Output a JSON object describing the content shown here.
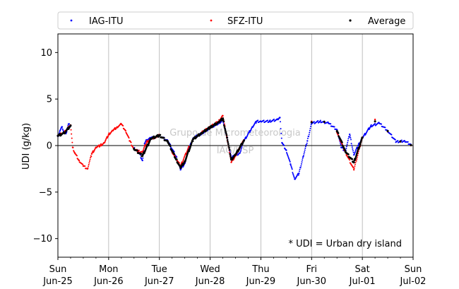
{
  "chart_data": {
    "type": "scatter",
    "ylabel": "UDI (g/kg)",
    "ylim": [
      -12,
      12
    ],
    "yticks": [
      -10,
      -5,
      0,
      5,
      10
    ],
    "xlim": [
      "2023-06-25T00:00",
      "2023-07-02T00:00"
    ],
    "xticks": [
      {
        "day": "Sun",
        "date": "Jun-25"
      },
      {
        "day": "Mon",
        "date": "Jun-26"
      },
      {
        "day": "Tue",
        "date": "Jun-27"
      },
      {
        "day": "Wed",
        "date": "Jun-28"
      },
      {
        "day": "Thu",
        "date": "Jun-29"
      },
      {
        "day": "Fri",
        "date": "Jun-30"
      },
      {
        "day": "Sat",
        "date": "Jul-01"
      },
      {
        "day": "Sun",
        "date": "Jul-02"
      }
    ],
    "grid": "vertical day lines",
    "legend_position": "top, above plot",
    "annotation": "* UDI = Urban dry island",
    "watermark": [
      "Grupo de Micrometeorologia",
      "IAG/USP"
    ],
    "series": [
      {
        "name": "IAG-ITU",
        "color": "#0000ff",
        "points": [
          [
            "2023-06-25T00:00",
            1.0
          ],
          [
            "2023-06-25T01:00",
            1.6
          ],
          [
            "2023-06-25T02:00",
            2.0
          ],
          [
            "2023-06-25T03:00",
            1.3
          ],
          [
            "2023-06-25T04:00",
            1.4
          ],
          [
            "2023-06-25T05:00",
            2.3
          ],
          [
            "2023-06-25T06:00",
            2.1
          ],
          [
            "2023-06-26T12:00",
            -0.3
          ],
          [
            "2023-06-26T14:00",
            -0.6
          ],
          [
            "2023-06-26T16:00",
            -1.6
          ],
          [
            "2023-06-26T17:00",
            0.2
          ],
          [
            "2023-06-26T18:00",
            0.6
          ],
          [
            "2023-06-26T20:00",
            0.8
          ],
          [
            "2023-06-26T22:00",
            0.9
          ],
          [
            "2023-06-27T00:00",
            1.1
          ],
          [
            "2023-06-27T04:00",
            0.5
          ],
          [
            "2023-06-27T08:00",
            -1.2
          ],
          [
            "2023-06-27T10:00",
            -2.6
          ],
          [
            "2023-06-27T12:00",
            -1.9
          ],
          [
            "2023-06-27T14:00",
            -0.3
          ],
          [
            "2023-06-27T16:00",
            0.8
          ],
          [
            "2023-06-27T20:00",
            1.3
          ],
          [
            "2023-06-28T00:00",
            1.9
          ],
          [
            "2023-06-28T04:00",
            2.4
          ],
          [
            "2023-06-28T06:00",
            2.7
          ],
          [
            "2023-06-28T08:00",
            0.9
          ],
          [
            "2023-06-28T10:00",
            -1.3
          ],
          [
            "2023-06-28T14:00",
            -0.8
          ],
          [
            "2023-06-28T16:00",
            0.5
          ],
          [
            "2023-06-28T20:00",
            2.0
          ],
          [
            "2023-06-28T22:00",
            2.6
          ],
          [
            "2023-06-29T00:00",
            2.6
          ],
          [
            "2023-06-29T04:00",
            2.6
          ],
          [
            "2023-06-29T08:00",
            2.8
          ],
          [
            "2023-06-29T09:00",
            3.0
          ],
          [
            "2023-06-29T10:00",
            0.3
          ],
          [
            "2023-06-29T12:00",
            -0.5
          ],
          [
            "2023-06-29T14:00",
            -2.0
          ],
          [
            "2023-06-29T16:00",
            -3.6
          ],
          [
            "2023-06-29T18:00",
            -3.0
          ],
          [
            "2023-06-29T20:00",
            -1.2
          ],
          [
            "2023-06-29T22:00",
            0.5
          ],
          [
            "2023-06-30T00:00",
            2.4
          ],
          [
            "2023-06-30T04:00",
            2.6
          ],
          [
            "2023-06-30T08:00",
            2.4
          ],
          [
            "2023-06-30T12:00",
            1.7
          ],
          [
            "2023-06-30T14:00",
            -0.2
          ],
          [
            "2023-06-30T16:00",
            -0.6
          ],
          [
            "2023-06-30T18:00",
            1.2
          ],
          [
            "2023-06-30T20:00",
            -1.0
          ],
          [
            "2023-06-30T22:00",
            0.0
          ],
          [
            "2023-07-01T00:00",
            0.8
          ],
          [
            "2023-07-01T04:00",
            2.1
          ],
          [
            "2023-07-01T08:00",
            2.4
          ],
          [
            "2023-07-01T12:00",
            1.6
          ],
          [
            "2023-07-01T16:00",
            0.4
          ],
          [
            "2023-07-01T20:00",
            0.5
          ],
          [
            "2023-07-01T23:00",
            0.1
          ]
        ]
      },
      {
        "name": "SFZ-ITU",
        "color": "#ff0000",
        "points": [
          [
            "2023-06-25T00:00",
            1.1
          ],
          [
            "2023-06-25T03:00",
            1.4
          ],
          [
            "2023-06-25T06:00",
            2.2
          ],
          [
            "2023-06-25T07:00",
            -0.2
          ],
          [
            "2023-06-25T08:00",
            -0.8
          ],
          [
            "2023-06-25T10:00",
            -1.6
          ],
          [
            "2023-06-25T12:00",
            -2.2
          ],
          [
            "2023-06-25T14:00",
            -2.5
          ],
          [
            "2023-06-25T16:00",
            -0.9
          ],
          [
            "2023-06-25T18:00",
            -0.2
          ],
          [
            "2023-06-25T20:00",
            0.0
          ],
          [
            "2023-06-25T22:00",
            0.3
          ],
          [
            "2023-06-26T00:00",
            1.2
          ],
          [
            "2023-06-26T02:00",
            1.6
          ],
          [
            "2023-06-26T04:00",
            2.0
          ],
          [
            "2023-06-26T06:00",
            2.3
          ],
          [
            "2023-06-26T08:00",
            1.6
          ],
          [
            "2023-06-26T10:00",
            0.5
          ],
          [
            "2023-06-26T12:00",
            -0.4
          ],
          [
            "2023-06-26T14:00",
            -0.6
          ],
          [
            "2023-06-26T16:00",
            -0.7
          ],
          [
            "2023-06-26T18:00",
            0.4
          ],
          [
            "2023-06-26T20:00",
            0.7
          ],
          [
            "2023-06-26T22:00",
            0.9
          ],
          [
            "2023-06-27T00:00",
            1.1
          ],
          [
            "2023-06-27T06:00",
            -0.7
          ],
          [
            "2023-06-27T10:00",
            -2.2
          ],
          [
            "2023-06-27T14:00",
            -0.1
          ],
          [
            "2023-06-27T20:00",
            1.4
          ],
          [
            "2023-06-28T00:00",
            2.0
          ],
          [
            "2023-06-28T04:00",
            2.6
          ],
          [
            "2023-06-28T06:00",
            3.2
          ],
          [
            "2023-06-28T08:00",
            0.8
          ],
          [
            "2023-06-28T10:00",
            -1.8
          ],
          [
            "2023-06-28T12:00",
            -1.1
          ],
          [
            "2023-06-28T16:00",
            0.6
          ],
          [
            "2023-06-30T00:00",
            2.6
          ],
          [
            "2023-06-30T06:00",
            2.5
          ],
          [
            "2023-06-30T12:00",
            1.4
          ],
          [
            "2023-06-30T16:00",
            -0.7
          ],
          [
            "2023-06-30T20:00",
            -2.6
          ],
          [
            "2023-07-01T00:00",
            0.9
          ],
          [
            "2023-07-01T06:00",
            2.8
          ],
          [
            "2023-07-01T12:00",
            1.5
          ],
          [
            "2023-07-01T18:00",
            0.4
          ],
          [
            "2023-07-01T23:00",
            0.0
          ]
        ]
      },
      {
        "name": "Average",
        "color": "#000000",
        "points": [
          [
            "2023-06-25T00:00",
            1.05
          ],
          [
            "2023-06-25T03:00",
            1.35
          ],
          [
            "2023-06-25T06:00",
            2.15
          ],
          [
            "2023-06-26T12:00",
            -0.35
          ],
          [
            "2023-06-26T16:00",
            -1.1
          ],
          [
            "2023-06-26T20:00",
            0.75
          ],
          [
            "2023-06-27T00:00",
            1.1
          ],
          [
            "2023-06-27T04:00",
            0.4
          ],
          [
            "2023-06-27T08:00",
            -1.5
          ],
          [
            "2023-06-27T10:00",
            -2.4
          ],
          [
            "2023-06-27T12:00",
            -1.7
          ],
          [
            "2023-06-27T16:00",
            0.7
          ],
          [
            "2023-06-27T20:00",
            1.35
          ],
          [
            "2023-06-28T00:00",
            1.95
          ],
          [
            "2023-06-28T04:00",
            2.5
          ],
          [
            "2023-06-28T06:00",
            2.9
          ],
          [
            "2023-06-28T08:00",
            0.85
          ],
          [
            "2023-06-28T10:00",
            -1.5
          ],
          [
            "2023-06-28T12:00",
            -1.0
          ],
          [
            "2023-06-28T16:00",
            0.55
          ],
          [
            "2023-06-30T00:00",
            2.5
          ],
          [
            "2023-06-30T06:00",
            2.55
          ],
          [
            "2023-06-30T12:00",
            1.55
          ],
          [
            "2023-06-30T16:00",
            -0.65
          ],
          [
            "2023-06-30T20:00",
            -1.8
          ],
          [
            "2023-07-01T00:00",
            0.85
          ],
          [
            "2023-07-01T06:00",
            2.6
          ],
          [
            "2023-07-01T12:00",
            1.55
          ],
          [
            "2023-07-01T18:00",
            0.45
          ],
          [
            "2023-07-01T23:00",
            0.05
          ]
        ]
      }
    ]
  }
}
